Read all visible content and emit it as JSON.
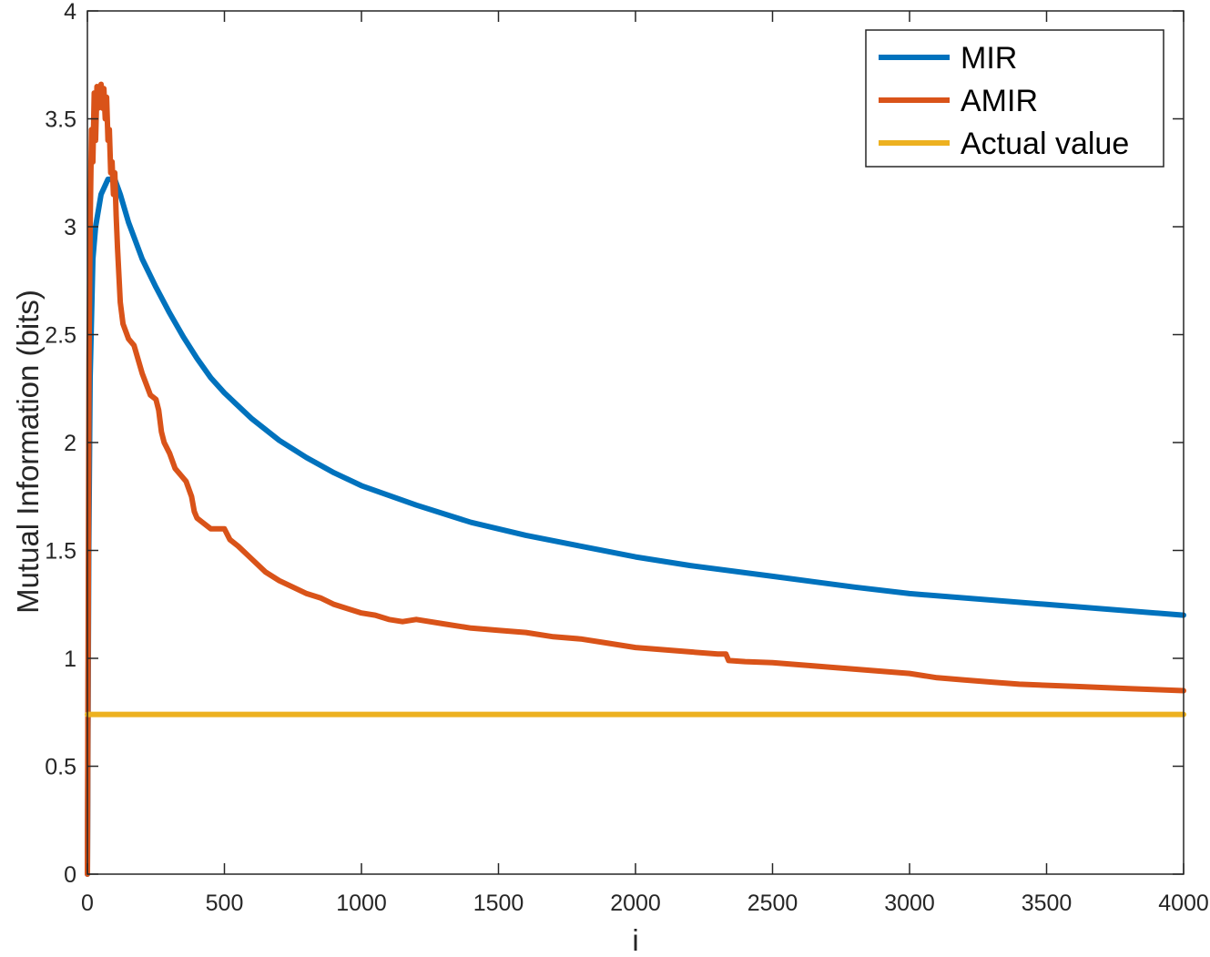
{
  "chart_data": {
    "type": "line",
    "title": "",
    "xlabel": "i",
    "ylabel": "Mutual Information (bits)",
    "xlim": [
      0,
      4000
    ],
    "ylim": [
      0,
      4
    ],
    "xticks": [
      0,
      500,
      1000,
      1500,
      2000,
      2500,
      3000,
      3500,
      4000
    ],
    "yticks": [
      0,
      0.5,
      1,
      1.5,
      2,
      2.5,
      3,
      3.5,
      4
    ],
    "xtick_labels": [
      "0",
      "500",
      "1000",
      "1500",
      "2000",
      "2500",
      "3000",
      "3500",
      "4000"
    ],
    "ytick_labels": [
      "0",
      "0.5",
      "1",
      "1.5",
      "2",
      "2.5",
      "3",
      "3.5",
      "4"
    ],
    "grid": false,
    "legend_position": "top-right",
    "series": [
      {
        "name": "MIR",
        "color": "#0072BD",
        "x": [
          0,
          5,
          10,
          20,
          30,
          50,
          75,
          100,
          120,
          150,
          200,
          250,
          300,
          350,
          400,
          450,
          500,
          600,
          700,
          800,
          900,
          1000,
          1200,
          1400,
          1600,
          1800,
          2000,
          2200,
          2500,
          2800,
          3000,
          3500,
          4000
        ],
        "y": [
          0.0,
          1.5,
          2.3,
          2.85,
          3.0,
          3.15,
          3.22,
          3.22,
          3.15,
          3.02,
          2.85,
          2.72,
          2.6,
          2.49,
          2.39,
          2.3,
          2.23,
          2.11,
          2.01,
          1.93,
          1.86,
          1.8,
          1.71,
          1.63,
          1.57,
          1.52,
          1.47,
          1.43,
          1.38,
          1.33,
          1.3,
          1.25,
          1.2
        ]
      },
      {
        "name": "AMIR",
        "color": "#D95319",
        "x": [
          0,
          3,
          6,
          10,
          15,
          20,
          25,
          30,
          35,
          40,
          45,
          50,
          55,
          60,
          65,
          70,
          75,
          80,
          85,
          90,
          95,
          100,
          105,
          110,
          120,
          130,
          150,
          170,
          200,
          230,
          250,
          260,
          270,
          280,
          300,
          320,
          340,
          360,
          380,
          390,
          400,
          420,
          450,
          480,
          500,
          520,
          550,
          600,
          650,
          700,
          750,
          800,
          850,
          900,
          950,
          1000,
          1050,
          1100,
          1150,
          1200,
          1300,
          1400,
          1500,
          1600,
          1700,
          1800,
          1900,
          2000,
          2100,
          2200,
          2300,
          2330,
          2340,
          2400,
          2500,
          2600,
          2700,
          2800,
          2900,
          3000,
          3100,
          3200,
          3300,
          3400,
          3500,
          3600,
          3700,
          3800,
          3900,
          4000
        ],
        "y": [
          0.0,
          1.2,
          2.4,
          3.0,
          3.45,
          3.3,
          3.62,
          3.4,
          3.65,
          3.55,
          3.63,
          3.66,
          3.55,
          3.64,
          3.5,
          3.6,
          3.4,
          3.45,
          3.25,
          3.3,
          3.15,
          3.25,
          3.05,
          2.9,
          2.65,
          2.55,
          2.48,
          2.45,
          2.32,
          2.22,
          2.2,
          2.15,
          2.05,
          2.0,
          1.95,
          1.88,
          1.85,
          1.82,
          1.75,
          1.68,
          1.65,
          1.63,
          1.6,
          1.6,
          1.6,
          1.55,
          1.52,
          1.46,
          1.4,
          1.36,
          1.33,
          1.3,
          1.28,
          1.25,
          1.23,
          1.21,
          1.2,
          1.18,
          1.17,
          1.18,
          1.16,
          1.14,
          1.13,
          1.12,
          1.1,
          1.09,
          1.07,
          1.05,
          1.04,
          1.03,
          1.02,
          1.02,
          0.99,
          0.985,
          0.98,
          0.97,
          0.96,
          0.95,
          0.94,
          0.93,
          0.91,
          0.9,
          0.89,
          0.88,
          0.875,
          0.87,
          0.865,
          0.86,
          0.855,
          0.85
        ]
      },
      {
        "name": "Actual value",
        "color": "#EDB120",
        "x": [
          0,
          4000
        ],
        "y": [
          0.74,
          0.74
        ]
      }
    ]
  }
}
